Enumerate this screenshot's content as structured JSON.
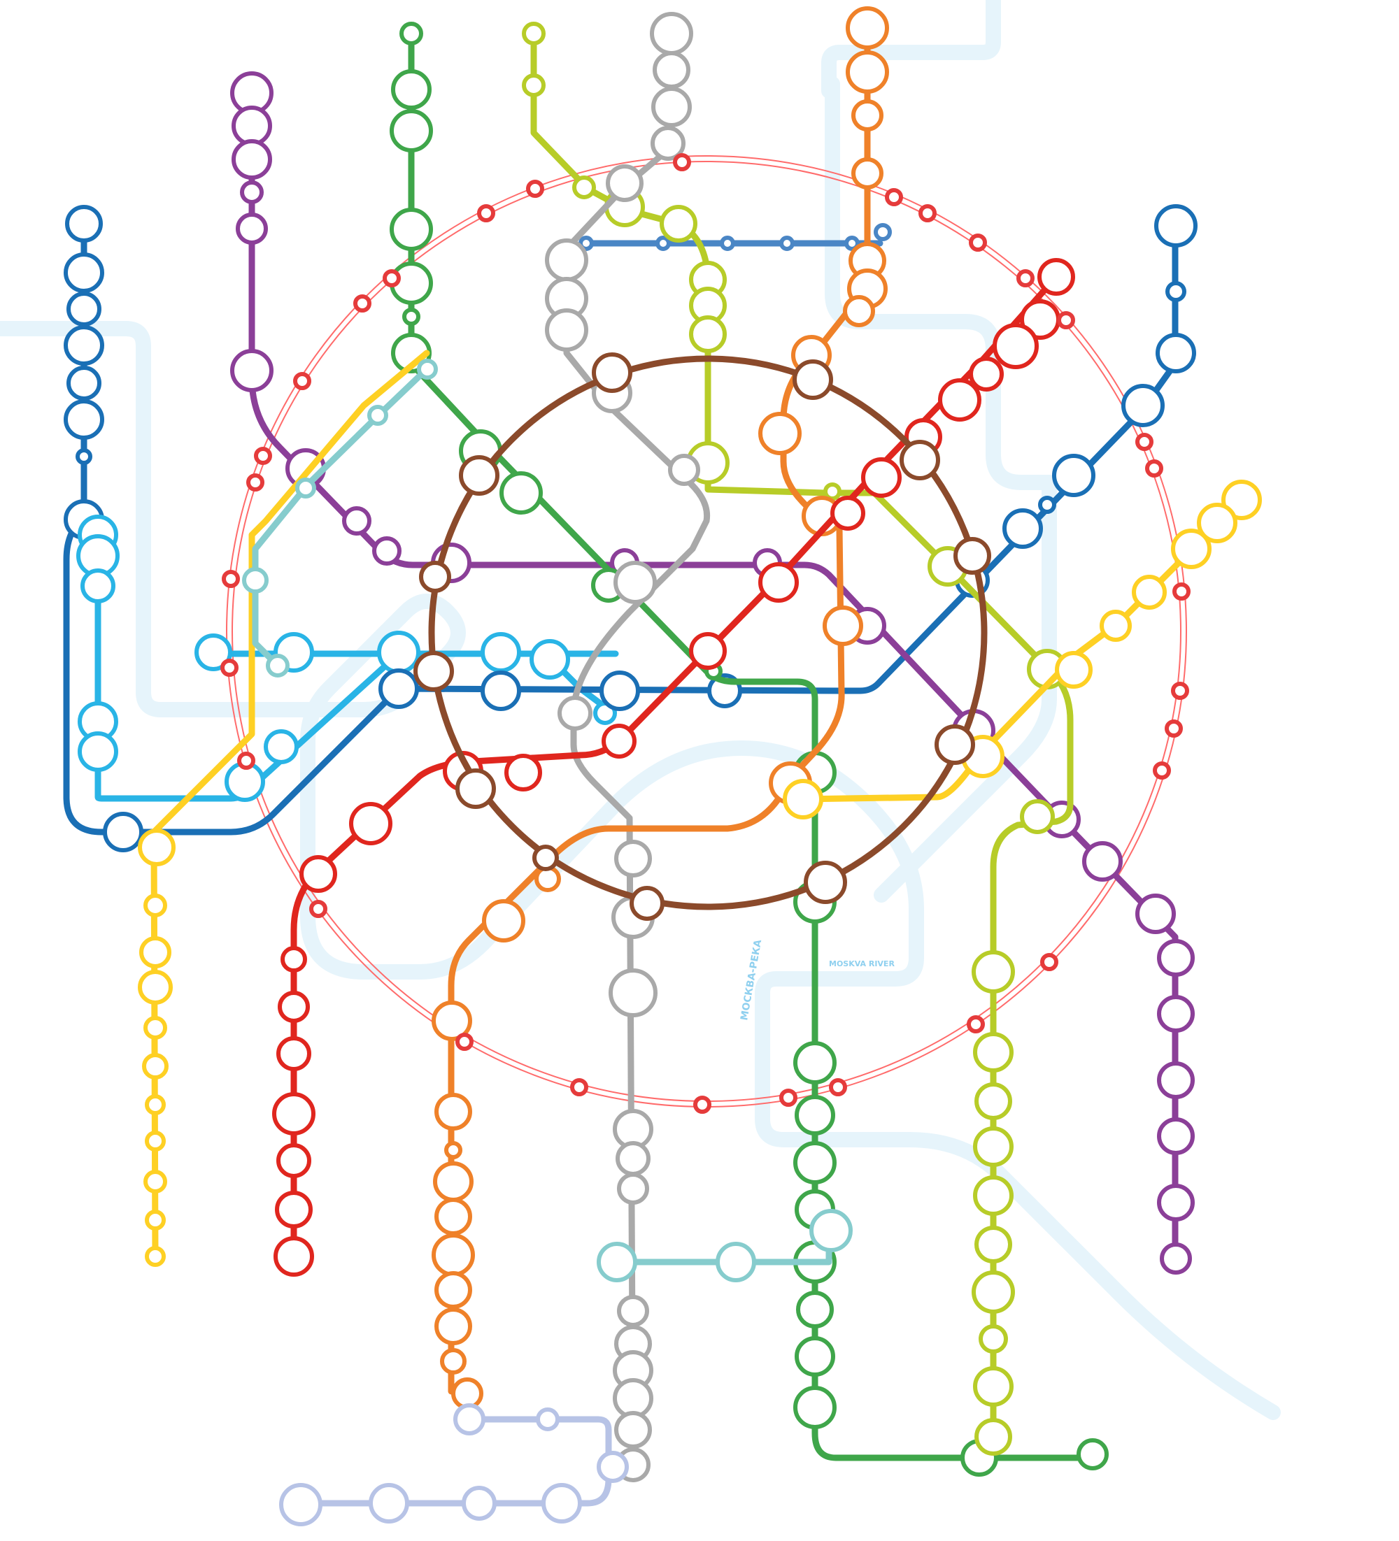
{
  "river_labels": {
    "ru": "МОСКВА-РЕКА",
    "en": "MOSKVA RIVER"
  },
  "colors": {
    "river": "#e6f4fb",
    "central_ring": "#ff6b6b",
    "circle_line": "#8b4a2b"
  },
  "lines": [
    {
      "id": "line-blue-north-west",
      "color": "#1a6fb5"
    },
    {
      "id": "line-purple",
      "color": "#8b3f98"
    },
    {
      "id": "line-green",
      "color": "#3fa64a"
    },
    {
      "id": "line-lime",
      "color": "#b7cc28"
    },
    {
      "id": "line-grey",
      "color": "#a9a9a9"
    },
    {
      "id": "line-orange",
      "color": "#ef8129"
    },
    {
      "id": "line-red",
      "color": "#e0261e"
    },
    {
      "id": "line-blue-east",
      "color": "#1a6fb5"
    },
    {
      "id": "line-yellow",
      "color": "#fed024"
    },
    {
      "id": "line-cyan",
      "color": "#29b4e6"
    },
    {
      "id": "line-teal",
      "color": "#86cccd"
    },
    {
      "id": "line-lavender",
      "color": "#b7c3e6"
    },
    {
      "id": "line-brown-circle",
      "color": "#8b4a2b"
    },
    {
      "id": "line-central-ring",
      "color": "#ff6b6b"
    }
  ]
}
